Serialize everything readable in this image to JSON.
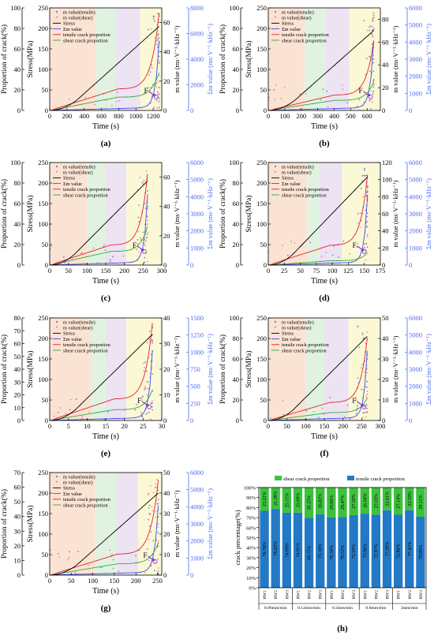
{
  "colors": {
    "stress": "#000000",
    "tensile_proportion": "#e8202a",
    "shear_proportion": "#2fae3a",
    "m_tensile": "#7f7fd0",
    "m_shear": "#e0557a",
    "sum_m": "#3d4cf2",
    "sum_axis": "#4f6cf0",
    "zone1": "#fbe3d3",
    "zone2": "#e1f2e1",
    "zone3": "#ece3f3",
    "zone4": "#fbf8d6",
    "bar_tensile": "#2379c6",
    "bar_shear": "#3cc23c"
  },
  "common": {
    "xlabel": "Time (s)",
    "ylabel_proportion": "Proportion of crack(%)",
    "ylabel_stress": "Stress(MPa)",
    "ylabel_m": "m value (ms·V⁻¹·kHz⁻¹)",
    "ylabel_sum": "Σm value (ms·V⁻¹·kHz⁻¹)",
    "point_label": "F",
    "legend": [
      "m value(tensile)",
      "m value(shear)",
      "Stress",
      "Σm value",
      "tensile crack proportion",
      "shear crack proportion"
    ]
  },
  "chart_data": [
    {
      "type": "line",
      "panel_label": "(a)",
      "xlim": [
        0,
        1300
      ],
      "xticks": [
        0,
        200,
        400,
        600,
        800,
        1000,
        1200
      ],
      "stress_lim": [
        0,
        250
      ],
      "stress_ticks": [
        0,
        50,
        100,
        150,
        200,
        250
      ],
      "proportion_lim": [
        0,
        100
      ],
      "proportion_ticks": [
        0,
        20,
        40,
        60,
        80,
        100
      ],
      "m_lim": [
        0,
        70
      ],
      "m_ticks": [
        0,
        20,
        40,
        60
      ],
      "sum_lim": [
        0,
        8000
      ],
      "sum_ticks": [
        0,
        2000,
        4000,
        6000,
        8000
      ],
      "zones": [
        0,
        530,
        760,
        1050,
        1300
      ],
      "peak_time": 1270,
      "peak_stress": 205,
      "final_tensile_pct": 95,
      "final_shear_pct": 37,
      "legend_position": "top-left"
    },
    {
      "type": "line",
      "panel_label": "(b)",
      "xlim": [
        0,
        680
      ],
      "xticks": [
        0,
        100,
        200,
        300,
        400,
        500,
        600
      ],
      "stress_lim": [
        0,
        250
      ],
      "stress_ticks": [
        0,
        50,
        100,
        150,
        200,
        250
      ],
      "proportion_lim": [
        0,
        100
      ],
      "proportion_ticks": [
        0,
        20,
        40,
        60,
        80,
        100
      ],
      "m_lim": [
        0,
        90
      ],
      "m_ticks": [
        0,
        20,
        40,
        60,
        80
      ],
      "sum_lim": [
        0,
        6000
      ],
      "sum_ticks": [
        0,
        1000,
        2000,
        3000,
        4000,
        5000,
        6000
      ],
      "zones": [
        0,
        220,
        350,
        490,
        680
      ],
      "peak_time": 640,
      "peak_stress": 195,
      "final_tensile_pct": 68,
      "final_shear_pct": 28,
      "legend_position": "top-left"
    },
    {
      "type": "line",
      "panel_label": "(c)",
      "xlim": [
        0,
        300
      ],
      "xticks": [
        0,
        50,
        100,
        150,
        200,
        250,
        300
      ],
      "stress_lim": [
        0,
        250
      ],
      "stress_ticks": [
        0,
        50,
        100,
        150,
        200,
        250
      ],
      "proportion_lim": [
        0,
        100
      ],
      "proportion_ticks": [
        0,
        20,
        40,
        60,
        80,
        100
      ],
      "m_lim": [
        0,
        70
      ],
      "m_ticks": [
        0,
        20,
        40,
        60
      ],
      "sum_lim": [
        0,
        6000
      ],
      "sum_ticks": [
        0,
        1000,
        2000,
        3000,
        4000,
        5000,
        6000
      ],
      "zones": [
        0,
        100,
        150,
        205,
        300
      ],
      "peak_time": 262,
      "peak_stress": 205,
      "final_tensile_pct": 89,
      "final_shear_pct": 38,
      "legend_position": "top-left"
    },
    {
      "type": "line",
      "panel_label": "(d)",
      "xlim": [
        0,
        175
      ],
      "xticks": [
        0,
        25,
        50,
        75,
        100,
        125,
        150,
        175
      ],
      "stress_lim": [
        0,
        250
      ],
      "stress_ticks": [
        0,
        50,
        100,
        150,
        200,
        250
      ],
      "proportion_lim": [
        0,
        100
      ],
      "proportion_ticks": [
        0,
        20,
        40,
        60,
        80,
        100
      ],
      "m_lim": [
        0,
        120
      ],
      "m_ticks": [
        0,
        20,
        40,
        60,
        80,
        100,
        120
      ],
      "sum_lim": [
        0,
        6000
      ],
      "sum_ticks": [
        0,
        1000,
        2000,
        3000,
        4000,
        5000,
        6000
      ],
      "zones": [
        0,
        60,
        80,
        115,
        175
      ],
      "peak_time": 155,
      "peak_stress": 215,
      "final_tensile_pct": 88,
      "final_shear_pct": 12,
      "legend_position": "top-left"
    },
    {
      "type": "line",
      "panel_label": "(e)",
      "xlim": [
        0,
        30
      ],
      "xticks": [
        0,
        5,
        10,
        15,
        20,
        25,
        30
      ],
      "stress_lim": [
        0,
        250
      ],
      "stress_ticks": [
        0,
        50,
        100,
        150,
        200,
        250
      ],
      "proportion_lim": [
        0,
        80
      ],
      "proportion_ticks": [
        0,
        10,
        20,
        30,
        40,
        50,
        60,
        70,
        80
      ],
      "m_lim": [
        0,
        40
      ],
      "m_ticks": [
        0,
        10,
        20,
        30,
        40
      ],
      "sum_lim": [
        0,
        1500
      ],
      "sum_ticks": [
        0,
        250,
        500,
        750,
        1000,
        1250,
        1500
      ],
      "zones": [
        0,
        11,
        15,
        20.5,
        30
      ],
      "peak_time": 27.5,
      "peak_stress": 210,
      "final_tensile_pct": 76,
      "final_shear_pct": 24,
      "legend_position": "top-left"
    },
    {
      "type": "line",
      "panel_label": "(f)",
      "xlim": [
        0,
        300
      ],
      "xticks": [
        0,
        50,
        100,
        150,
        200,
        250,
        300
      ],
      "stress_lim": [
        0,
        250
      ],
      "stress_ticks": [
        0,
        50,
        100,
        150,
        200,
        250
      ],
      "proportion_lim": [
        0,
        100
      ],
      "proportion_ticks": [
        0,
        20,
        40,
        60,
        80,
        100
      ],
      "m_lim": [
        0,
        50
      ],
      "m_ticks": [
        0,
        10,
        20,
        30,
        40,
        50
      ],
      "sum_lim": [
        0,
        6000
      ],
      "sum_ticks": [
        0,
        1000,
        2000,
        3000,
        4000,
        5000,
        6000
      ],
      "zones": [
        0,
        100,
        150,
        215,
        300
      ],
      "peak_time": 265,
      "peak_stress": 205,
      "final_tensile_pct": 80,
      "final_shear_pct": 22,
      "legend_position": "top-left"
    },
    {
      "type": "line",
      "panel_label": "(g)",
      "xlim": [
        0,
        260
      ],
      "xticks": [
        0,
        50,
        100,
        150,
        200,
        250
      ],
      "stress_lim": [
        0,
        250
      ],
      "stress_ticks": [
        0,
        50,
        100,
        150,
        200,
        250
      ],
      "proportion_lim": [
        0,
        70
      ],
      "proportion_ticks": [
        0,
        10,
        20,
        30,
        40,
        50,
        60,
        70
      ],
      "m_lim": [
        0,
        50
      ],
      "m_ticks": [
        0,
        10,
        20,
        30,
        40,
        50
      ],
      "sum_lim": [
        0,
        6000
      ],
      "sum_ticks": [
        0,
        1000,
        2000,
        3000,
        4000,
        5000,
        6000
      ],
      "zones": [
        0,
        105,
        155,
        205,
        260
      ],
      "peak_time": 252,
      "peak_stress": 200,
      "final_tensile_pct": 65,
      "final_shear_pct": 22,
      "legend_position": "top-left"
    },
    {
      "type": "bar",
      "panel_label": "(h)",
      "stacked": true,
      "ylabel": "crack percentage(%)",
      "ylim": [
        0,
        100
      ],
      "yticks": [
        "0%",
        "10%",
        "20%",
        "30%",
        "40%",
        "50%",
        "60%",
        "70%",
        "80%",
        "90%",
        "100%"
      ],
      "categories": [
        "RW1",
        "RW2",
        "RW3",
        "RW1",
        "RW2",
        "RW3",
        "RW1",
        "RW2",
        "RW3",
        "RW1",
        "RW2",
        "RW3",
        "RW1",
        "RW2",
        "RW3"
      ],
      "groups": [
        {
          "label": "0.06mm/min",
          "count": 3
        },
        {
          "label": "0.12mm/min",
          "count": 3
        },
        {
          "label": "0.3mm/min",
          "count": 3
        },
        {
          "label": "0.6mm/min",
          "count": 3
        },
        {
          "label": "3mm/min",
          "count": 3
        }
      ],
      "series": [
        {
          "name": "tensile crack proportion",
          "values": [
            76.78,
            78.62,
            74.89,
            74.91,
            69.75,
            73.18,
            70.34,
            70.53,
            72.5,
            73.96,
            72.97,
            77.39,
            72.86,
            77.41,
            70.89
          ],
          "labels": [
            "76.78%",
            "78.62%",
            "74.89%",
            "74.91%",
            "69.75%",
            "73.18%",
            "70.34%",
            "70.53%",
            "72.50%",
            "73.96%",
            "72.97%",
            "77.39%",
            "72.86%",
            "77.41%",
            "70.89%"
          ]
        },
        {
          "name": "shear crack proportion",
          "values": [
            23.22,
            21.38,
            25.11,
            25.09,
            30.25,
            26.82,
            29.66,
            29.47,
            27.5,
            26.04,
            27.03,
            22.61,
            27.14,
            22.59,
            29.11
          ],
          "labels": [
            "23.22%",
            "21.38%",
            "25.11%",
            "25.09%",
            "30.25%",
            "26.82%",
            "29.66%",
            "29.47%",
            "27.50%",
            "26.04%",
            "27.03%",
            "22.61%",
            "27.14%",
            "22.59%",
            "29.11%"
          ]
        }
      ],
      "legend_position": "top"
    }
  ]
}
